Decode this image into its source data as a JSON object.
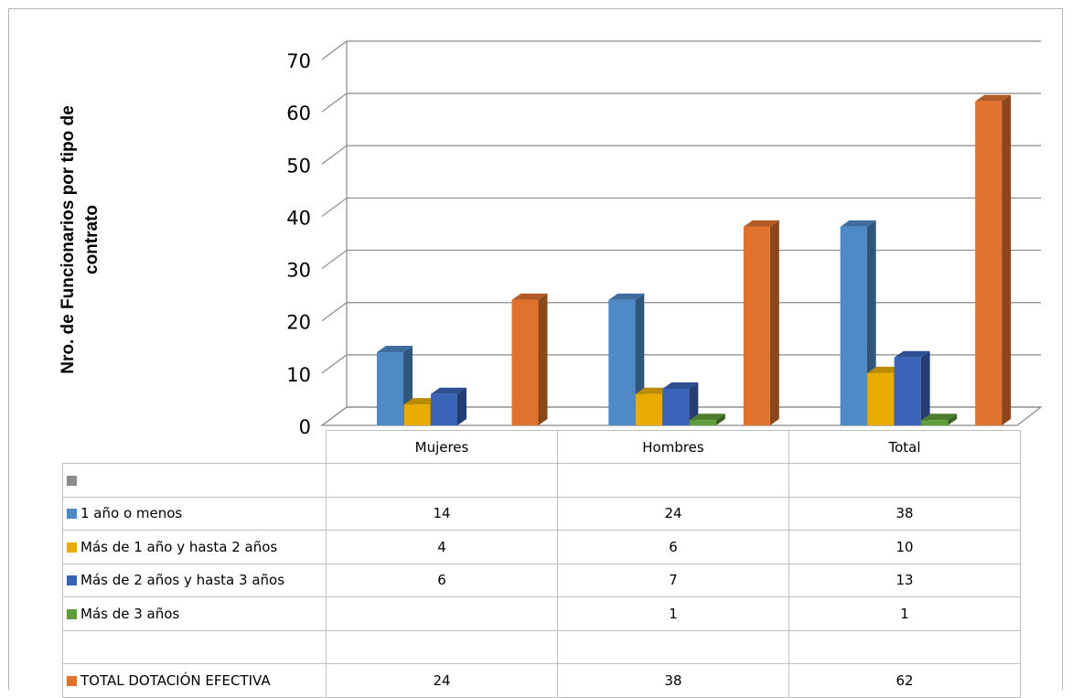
{
  "chart_data": {
    "type": "bar",
    "subtype": "3d-clustered-column-with-data-table",
    "ylabel": "Nro. de Funcionarios por tipo de contrato",
    "ylim": [
      0,
      70
    ],
    "yticks": [
      "0",
      "10",
      "20",
      "30",
      "40",
      "50",
      "60",
      "70"
    ],
    "categories": [
      "Mujeres",
      "Hombres",
      "Total"
    ],
    "grid": true,
    "legend": "data-table",
    "series": [
      {
        "name": "",
        "color": "#8c8c8c",
        "values": [
          null,
          null,
          null
        ],
        "labels": [
          "",
          "",
          ""
        ]
      },
      {
        "name": "1 año o menos",
        "color": "#4f8ac6",
        "values": [
          14,
          24,
          38
        ],
        "labels": [
          "14",
          "24",
          "38"
        ]
      },
      {
        "name": "Más de 1 año y hasta 2 años",
        "color": "#e8ac00",
        "values": [
          4,
          6,
          10
        ],
        "labels": [
          "4",
          "6",
          "10"
        ]
      },
      {
        "name": "Más de 2 años y hasta 3 años",
        "color": "#3a64b8",
        "values": [
          6,
          7,
          13
        ],
        "labels": [
          "6",
          "7",
          "13"
        ]
      },
      {
        "name": "Más de 3 años",
        "color": "#5f9e3a",
        "values": [
          null,
          1,
          1
        ],
        "labels": [
          "",
          "1",
          "1"
        ]
      },
      {
        "name": "",
        "color": "#ffffff",
        "values": [
          null,
          null,
          null
        ],
        "labels": [
          "",
          "",
          ""
        ]
      },
      {
        "name": "TOTAL DOTACIÓN EFECTIVA",
        "color": "#e0722d",
        "values": [
          24,
          38,
          62
        ],
        "labels": [
          "24",
          "38",
          "62"
        ]
      }
    ]
  }
}
